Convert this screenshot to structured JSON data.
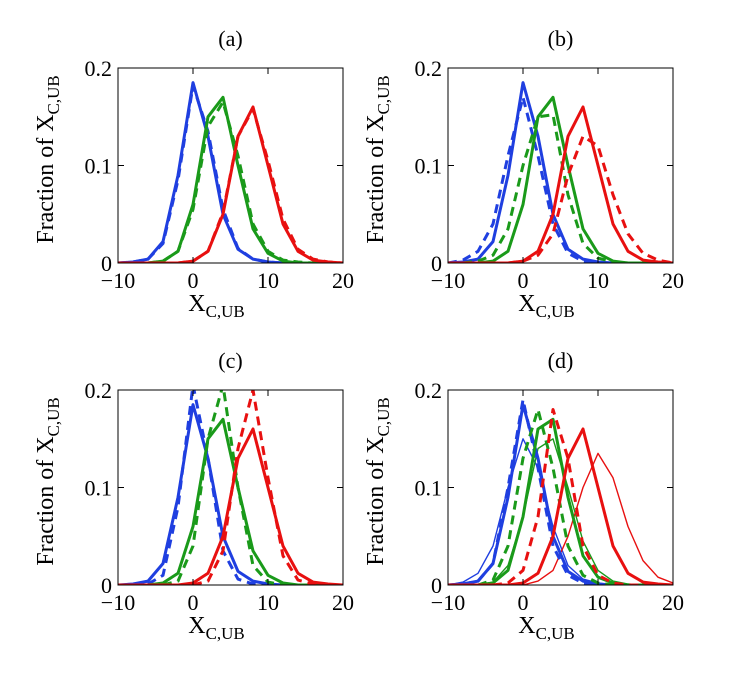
{
  "chart_data": {
    "type": "line",
    "figure": "2x2 grid of distribution plots",
    "xlim": [
      -10,
      20
    ],
    "ylim": [
      0,
      0.2
    ],
    "xticks": [
      "−10",
      "0",
      "10",
      "20"
    ],
    "yticks": [
      "0",
      "0.1",
      "0.2"
    ],
    "xlabel_main": "X",
    "xlabel_sub": "C,UB",
    "ylabel_main": "Fraction of X",
    "ylabel_sub": "C,UB",
    "series_colors": {
      "blue": "#1f3fe0",
      "green": "#1a9a1a",
      "red": "#e81010"
    },
    "x": [
      -10,
      -8,
      -6,
      -4,
      -2,
      0,
      2,
      4,
      6,
      8,
      10,
      12,
      14,
      16,
      18,
      20
    ],
    "panels": [
      {
        "label": "(a)",
        "series": [
          {
            "name": "blue solid",
            "color": "blue",
            "style": "solid",
            "width": "thick",
            "values": [
              0,
              0.001,
              0.004,
              0.022,
              0.09,
              0.185,
              0.13,
              0.05,
              0.014,
              0.004,
              0.001,
              0,
              0,
              0,
              0,
              0
            ]
          },
          {
            "name": "blue dashed",
            "color": "blue",
            "style": "dashed",
            "width": "thick",
            "values": [
              0,
              0.001,
              0.004,
              0.02,
              0.085,
              0.182,
              0.135,
              0.055,
              0.015,
              0.004,
              0.001,
              0,
              0,
              0,
              0,
              0
            ]
          },
          {
            "name": "green solid",
            "color": "green",
            "style": "solid",
            "width": "thick",
            "values": [
              0,
              0,
              0,
              0.002,
              0.012,
              0.06,
              0.15,
              0.17,
              0.1,
              0.035,
              0.01,
              0.002,
              0,
              0,
              0,
              0
            ]
          },
          {
            "name": "green dashed",
            "color": "green",
            "style": "dashed",
            "width": "thick",
            "values": [
              0,
              0,
              0,
              0.002,
              0.012,
              0.055,
              0.14,
              0.165,
              0.11,
              0.04,
              0.012,
              0.003,
              0.001,
              0,
              0,
              0
            ]
          },
          {
            "name": "red solid",
            "color": "red",
            "style": "solid",
            "width": "thick",
            "values": [
              0,
              0,
              0,
              0,
              0,
              0.002,
              0.012,
              0.05,
              0.13,
              0.16,
              0.1,
              0.04,
              0.012,
              0.003,
              0.001,
              0
            ]
          },
          {
            "name": "red dashed",
            "color": "red",
            "style": "dashed",
            "width": "thick",
            "values": [
              0,
              0,
              0,
              0,
              0,
              0.002,
              0.012,
              0.052,
              0.13,
              0.158,
              0.105,
              0.045,
              0.014,
              0.004,
              0.001,
              0
            ]
          }
        ]
      },
      {
        "label": "(b)",
        "series": [
          {
            "name": "blue solid",
            "color": "blue",
            "style": "solid",
            "width": "thick",
            "values": [
              0,
              0.001,
              0.004,
              0.022,
              0.09,
              0.185,
              0.13,
              0.05,
              0.014,
              0.004,
              0.001,
              0,
              0,
              0,
              0,
              0
            ]
          },
          {
            "name": "blue dashed",
            "color": "blue",
            "style": "dashed",
            "width": "thick",
            "values": [
              0,
              0.003,
              0.012,
              0.04,
              0.11,
              0.17,
              0.11,
              0.04,
              0.01,
              0.002,
              0,
              0,
              0,
              0,
              0,
              0
            ]
          },
          {
            "name": "green solid",
            "color": "green",
            "style": "solid",
            "width": "thick",
            "values": [
              0,
              0,
              0,
              0.002,
              0.012,
              0.06,
              0.15,
              0.17,
              0.1,
              0.035,
              0.01,
              0.002,
              0,
              0,
              0,
              0
            ]
          },
          {
            "name": "green dashed",
            "color": "green",
            "style": "dashed",
            "width": "thick",
            "values": [
              0,
              0,
              0.002,
              0.008,
              0.035,
              0.1,
              0.15,
              0.152,
              0.07,
              0.02,
              0.005,
              0.001,
              0,
              0,
              0,
              0
            ]
          },
          {
            "name": "red solid",
            "color": "red",
            "style": "solid",
            "width": "thick",
            "values": [
              0,
              0,
              0,
              0,
              0,
              0.002,
              0.012,
              0.05,
              0.13,
              0.16,
              0.1,
              0.04,
              0.012,
              0.003,
              0.001,
              0
            ]
          },
          {
            "name": "red dashed",
            "color": "red",
            "style": "dashed",
            "width": "thick",
            "values": [
              0,
              0,
              0,
              0,
              0,
              0.002,
              0.008,
              0.03,
              0.09,
              0.13,
              0.12,
              0.07,
              0.03,
              0.01,
              0.003,
              0
            ]
          }
        ]
      },
      {
        "label": "(c)",
        "series": [
          {
            "name": "blue solid",
            "color": "blue",
            "style": "solid",
            "width": "thick",
            "values": [
              0,
              0.001,
              0.004,
              0.022,
              0.09,
              0.185,
              0.13,
              0.05,
              0.014,
              0.004,
              0.001,
              0,
              0,
              0,
              0,
              0
            ]
          },
          {
            "name": "blue dashed",
            "color": "blue",
            "style": "dashed",
            "width": "thick",
            "values": [
              0,
              0,
              0.001,
              0.01,
              0.08,
              0.205,
              0.13,
              0.035,
              0.006,
              0.001,
              0,
              0,
              0,
              0,
              0,
              0
            ]
          },
          {
            "name": "green solid",
            "color": "green",
            "style": "solid",
            "width": "thick",
            "values": [
              0,
              0,
              0,
              0.002,
              0.012,
              0.06,
              0.15,
              0.17,
              0.1,
              0.035,
              0.01,
              0.002,
              0,
              0,
              0,
              0
            ]
          },
          {
            "name": "green dashed",
            "color": "green",
            "style": "dashed",
            "width": "thick",
            "values": [
              0,
              0,
              0,
              0,
              0.004,
              0.04,
              0.15,
              0.205,
              0.1,
              0.02,
              0.003,
              0,
              0,
              0,
              0,
              0
            ]
          },
          {
            "name": "red solid",
            "color": "red",
            "style": "solid",
            "width": "thick",
            "values": [
              0,
              0,
              0,
              0,
              0,
              0.002,
              0.012,
              0.05,
              0.13,
              0.16,
              0.1,
              0.04,
              0.012,
              0.003,
              0.001,
              0
            ]
          },
          {
            "name": "red dashed",
            "color": "red",
            "style": "dashed",
            "width": "thick",
            "values": [
              0,
              0,
              0,
              0,
              0,
              0,
              0.004,
              0.035,
              0.14,
              0.2,
              0.11,
              0.03,
              0.005,
              0.001,
              0,
              0
            ]
          }
        ]
      },
      {
        "label": "(d)",
        "series": [
          {
            "name": "blue solid",
            "color": "blue",
            "style": "solid",
            "width": "thick",
            "values": [
              0,
              0.001,
              0.004,
              0.022,
              0.09,
              0.185,
              0.13,
              0.05,
              0.014,
              0.004,
              0.001,
              0,
              0,
              0,
              0,
              0
            ]
          },
          {
            "name": "blue dashed",
            "color": "blue",
            "style": "dashed",
            "width": "thick",
            "values": [
              0,
              0.001,
              0.004,
              0.022,
              0.1,
              0.19,
              0.12,
              0.04,
              0.01,
              0.002,
              0,
              0,
              0,
              0,
              0,
              0
            ]
          },
          {
            "name": "blue thin",
            "color": "blue",
            "style": "solid",
            "width": "thin",
            "values": [
              0,
              0.003,
              0.012,
              0.04,
              0.1,
              0.15,
              0.12,
              0.06,
              0.02,
              0.006,
              0.002,
              0,
              0,
              0,
              0,
              0
            ]
          },
          {
            "name": "green solid",
            "color": "green",
            "style": "solid",
            "width": "thick",
            "values": [
              0,
              0,
              0,
              0.002,
              0.015,
              0.07,
              0.16,
              0.17,
              0.09,
              0.03,
              0.008,
              0.002,
              0,
              0,
              0,
              0
            ]
          },
          {
            "name": "green dashed",
            "color": "green",
            "style": "dashed",
            "width": "thick",
            "values": [
              0,
              0,
              0,
              0.005,
              0.04,
              0.13,
              0.18,
              0.12,
              0.04,
              0.01,
              0.002,
              0,
              0,
              0,
              0,
              0
            ]
          },
          {
            "name": "green thin",
            "color": "green",
            "style": "solid",
            "width": "thin",
            "values": [
              0,
              0,
              0,
              0.003,
              0.02,
              0.07,
              0.14,
              0.15,
              0.1,
              0.045,
              0.015,
              0.004,
              0.001,
              0,
              0,
              0
            ]
          },
          {
            "name": "red solid",
            "color": "red",
            "style": "solid",
            "width": "thick",
            "values": [
              0,
              0,
              0,
              0,
              0,
              0.002,
              0.012,
              0.05,
              0.13,
              0.16,
              0.1,
              0.04,
              0.012,
              0.003,
              0.001,
              0
            ]
          },
          {
            "name": "red dashed",
            "color": "red",
            "style": "dashed",
            "width": "thick",
            "values": [
              0,
              0,
              0,
              0,
              0.002,
              0.015,
              0.07,
              0.18,
              0.13,
              0.04,
              0.01,
              0.002,
              0,
              0,
              0,
              0
            ]
          },
          {
            "name": "red thin",
            "color": "red",
            "style": "solid",
            "width": "thin",
            "values": [
              0,
              0,
              0,
              0,
              0,
              0,
              0.004,
              0.015,
              0.05,
              0.1,
              0.135,
              0.11,
              0.06,
              0.025,
              0.008,
              0.002
            ]
          }
        ]
      }
    ]
  }
}
